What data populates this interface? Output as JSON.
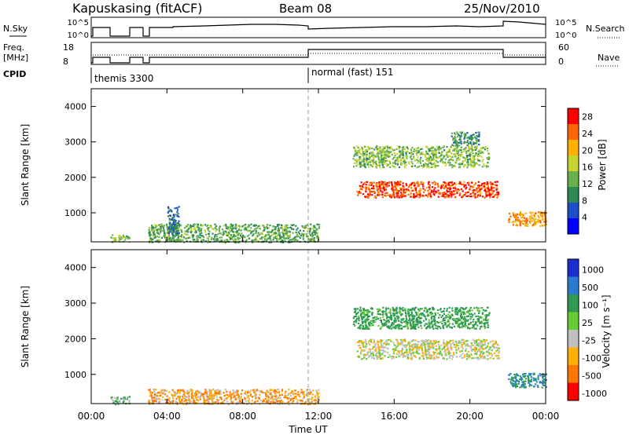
{
  "header": {
    "station": "Kapuskasing (fitACF)",
    "beam": "Beam 08",
    "date": "25/Nov/2010"
  },
  "top_panels": {
    "nsky_label": "N.Sky",
    "nsky_ticks": [
      "10^5",
      "10^0"
    ],
    "nsearch_label": "N.Search",
    "nsearch_ticks": [
      "10^5",
      "10^0"
    ],
    "freq_label_line1": "Freq.",
    "freq_label_line2": "[MHz]",
    "freq_ticks": [
      "18",
      "8"
    ],
    "nave_label": "Nave",
    "nave_ticks": [
      "60",
      "0"
    ],
    "cpid_label": "CPID",
    "cpid_segments": [
      {
        "label": "themis 3300",
        "start_hour": 1.0
      },
      {
        "label": "normal (fast) 151",
        "start_hour": 12.0
      }
    ]
  },
  "chart_data": [
    {
      "type": "heatmap",
      "name": "power",
      "title": "",
      "xlabel": "Time UT",
      "ylabel": "Slant Range [km]",
      "x_range_hours": [
        0,
        24
      ],
      "x_ticks": [
        "00:00",
        "04:00",
        "08:00",
        "12:00",
        "16:00",
        "20:00",
        "00:00"
      ],
      "ylim": [
        180,
        4500
      ],
      "y_ticks": [
        1000,
        2000,
        3000,
        4000
      ],
      "colorbar": {
        "label": "Power [dB]",
        "ticks": [
          "4",
          "8",
          "12",
          "16",
          "20",
          "24",
          "28"
        ],
        "range": [
          0,
          30
        ],
        "colors": [
          "#0000ff",
          "#1f4fc8",
          "#2e8a55",
          "#6ab04c",
          "#c8d530",
          "#ffb000",
          "#ff6600",
          "#ff0000"
        ]
      },
      "regions": [
        {
          "t0": 1.0,
          "t1": 2.0,
          "r0": 180,
          "r1": 400,
          "value": 14
        },
        {
          "t0": 3.0,
          "t1": 12.0,
          "r0": 180,
          "r1": 700,
          "value": 12
        },
        {
          "t0": 4.0,
          "t1": 4.6,
          "r0": 400,
          "r1": 1200,
          "value": 8
        },
        {
          "t0": 13.8,
          "t1": 21.0,
          "r0": 2300,
          "r1": 2900,
          "value": 14
        },
        {
          "t0": 14.0,
          "t1": 21.5,
          "r0": 1450,
          "r1": 1900,
          "value": 26
        },
        {
          "t0": 19.0,
          "t1": 20.5,
          "r0": 2900,
          "r1": 3300,
          "value": 10
        },
        {
          "t0": 22.0,
          "t1": 24.0,
          "r0": 650,
          "r1": 1050,
          "value": 22
        }
      ],
      "dashed_vline_hour": 12.0
    },
    {
      "type": "heatmap",
      "name": "velocity",
      "title": "",
      "xlabel": "Time UT",
      "ylabel": "Slant Range [km]",
      "x_range_hours": [
        0,
        24
      ],
      "x_ticks": [
        "00:00",
        "04:00",
        "08:00",
        "12:00",
        "16:00",
        "20:00",
        "00:00"
      ],
      "ylim": [
        180,
        4500
      ],
      "y_ticks": [
        1000,
        2000,
        3000,
        4000
      ],
      "colorbar": {
        "label": "Velocity [m s⁻¹]",
        "ticks": [
          "1000",
          "500",
          "100",
          "25",
          "-25",
          "-100",
          "-500",
          "-1000"
        ],
        "colors": [
          "#1b2fd1",
          "#2a7bd0",
          "#2e9a52",
          "#66cc33",
          "#c0c0c0",
          "#ffb000",
          "#ff7700",
          "#ff0000"
        ]
      },
      "regions": [
        {
          "t0": 1.0,
          "t1": 2.0,
          "r0": 180,
          "r1": 400,
          "value": 50
        },
        {
          "t0": 3.0,
          "t1": 12.0,
          "r0": 180,
          "r1": 600,
          "value": -50
        },
        {
          "t0": 13.8,
          "t1": 21.0,
          "r0": 2300,
          "r1": 2900,
          "value": 100
        },
        {
          "t0": 14.0,
          "t1": 21.5,
          "r0": 1450,
          "r1": 2000,
          "value": 0
        },
        {
          "t0": 22.0,
          "t1": 24.0,
          "r0": 650,
          "r1": 1050,
          "value": 300
        }
      ],
      "dashed_vline_hour": 12.0
    }
  ]
}
